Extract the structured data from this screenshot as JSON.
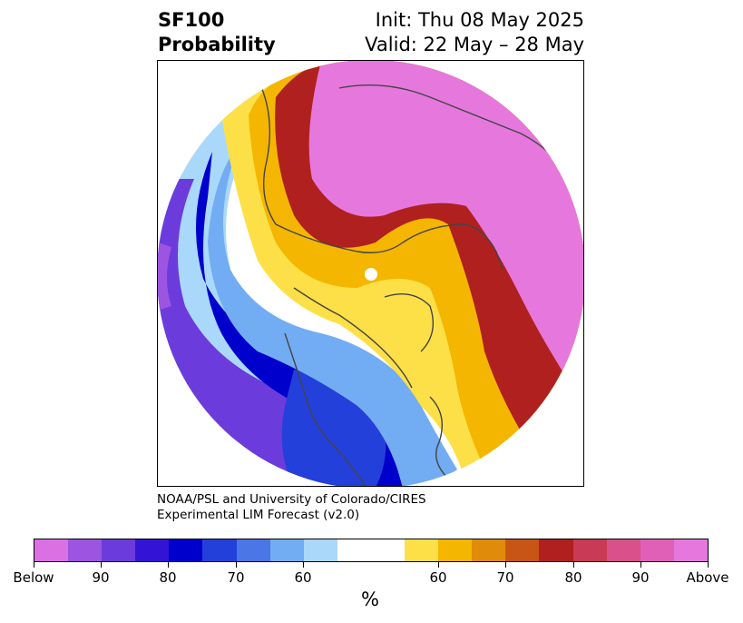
{
  "title": {
    "left_line1": "SF100",
    "left_line2": "Probability",
    "right_line1": "Init: Thu 08 May 2025",
    "right_line2": "Valid: 22 May – 28 May"
  },
  "credit": {
    "line1": "NOAA/PSL and University of Colorado/CIRES",
    "line2": "Experimental LIM Forecast (v2.0)"
  },
  "colorbar": {
    "colors": [
      "#da70e3",
      "#9c55e0",
      "#6c3bdc",
      "#3313d6",
      "#0000cc",
      "#2440da",
      "#4a76e6",
      "#72acf2",
      "#aad8fa",
      "#ffffff",
      "#ffffff",
      "#fde047",
      "#f4b600",
      "#e08c0a",
      "#c85516",
      "#b0201e",
      "#c83a55",
      "#d9508a",
      "#e060b8",
      "#e678dd"
    ],
    "tick_labels": [
      "Below",
      "90",
      "80",
      "70",
      "60",
      "60",
      "70",
      "80",
      "90",
      "Above"
    ],
    "unit": "%"
  },
  "map": {
    "projection": "north-polar-stereographic",
    "variable": "SF100",
    "colors": {
      "above_strong": "#e678dd",
      "above_mid": "#d9508a",
      "above_low": "#c83a55",
      "red": "#b0201e",
      "orange": "#e08c0a",
      "gold": "#f4b600",
      "yellow": "#fde047",
      "below_strong": "#9c55e0",
      "below_mid": "#6c3bdc",
      "blue_dark": "#3313d6",
      "blue": "#0000cc",
      "blue_mid": "#2440da",
      "blue_light": "#4a76e6",
      "sky": "#72acf2",
      "pale": "#aad8fa",
      "coast": "#444444"
    }
  }
}
